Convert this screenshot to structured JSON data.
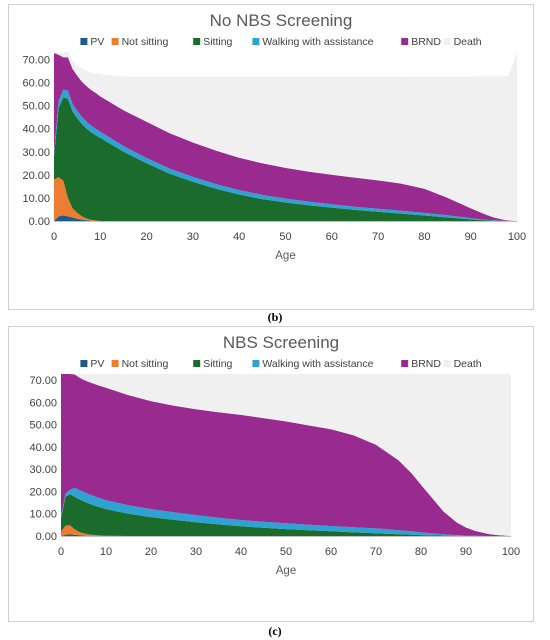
{
  "captions": {
    "b": "(b)",
    "c": "(c)"
  },
  "colors": {
    "PV": "#1f5c8b",
    "Not sitting": "#ed7d31",
    "Sitting": "#1a6b2c",
    "Walking with assistance": "#2ea3d3",
    "BRND": "#982a90",
    "Death": "#f0f0f0"
  },
  "chart_data": [
    {
      "id": "b",
      "type": "area",
      "stacked": true,
      "title": "No NBS Screening",
      "xlabel": "Age",
      "ylabel": "",
      "xlim": [
        0,
        100
      ],
      "ylim": [
        0,
        72.8
      ],
      "xticks": [
        "0",
        "10",
        "20",
        "30",
        "40",
        "50",
        "60",
        "70",
        "80",
        "90",
        "100"
      ],
      "yticks": [
        "0.00",
        "10.00",
        "20.00",
        "30.00",
        "40.00",
        "50.00",
        "60.00",
        "70.00"
      ],
      "legend_position": "top",
      "x": [
        0,
        1,
        2,
        3,
        4,
        5,
        6,
        7,
        8,
        9,
        10,
        15,
        20,
        25,
        30,
        35,
        40,
        45,
        50,
        55,
        60,
        65,
        70,
        75,
        80,
        85,
        90,
        93,
        95,
        97,
        98,
        100
      ],
      "series": [
        {
          "name": "PV",
          "values": [
            0,
            2,
            2.5,
            2,
            1.5,
            1,
            0.6,
            0.3,
            0.1,
            0,
            0,
            0,
            0,
            0,
            0,
            0,
            0,
            0,
            0,
            0,
            0,
            0,
            0,
            0,
            0,
            0,
            0,
            0,
            0,
            0,
            0,
            0
          ]
        },
        {
          "name": "Not sitting",
          "values": [
            18,
            17,
            15,
            8,
            4,
            2.5,
            1.5,
            0.8,
            0.4,
            0.2,
            0,
            0,
            0,
            0,
            0,
            0,
            0,
            0,
            0,
            0,
            0,
            0,
            0,
            0,
            0,
            0,
            0,
            0,
            0,
            0,
            0,
            0
          ]
        },
        {
          "name": "Sitting",
          "values": [
            10,
            30,
            36,
            43,
            42,
            41,
            40,
            39,
            38,
            37,
            36,
            30,
            25,
            20.5,
            17,
            14,
            11.5,
            9.5,
            8,
            6.8,
            5.8,
            4.8,
            4,
            3.2,
            2.4,
            1.5,
            0.7,
            0.3,
            0.1,
            0,
            0,
            0
          ]
        },
        {
          "name": "Walking with assistance",
          "values": [
            2,
            3,
            3.5,
            3.5,
            3.3,
            3.2,
            3.1,
            3.0,
            2.9,
            2.8,
            2.7,
            2.5,
            2.3,
            2.2,
            2.1,
            2.0,
            1.9,
            1.8,
            1.7,
            1.6,
            1.5,
            1.4,
            1.3,
            1.2,
            1.1,
            1.0,
            0.6,
            0.3,
            0.2,
            0.1,
            0,
            0
          ]
        },
        {
          "name": "BRND",
          "values": [
            42.8,
            20,
            14,
            14.5,
            15.2,
            15.3,
            15.2,
            15.4,
            15.4,
            15.5,
            15.3,
            15.5,
            15.7,
            15.3,
            14.9,
            14.5,
            14,
            13.7,
            13.3,
            13,
            12.7,
            12.6,
            12.3,
            11.8,
            10.5,
            7.5,
            4.2,
            2.4,
            1.2,
            0.5,
            0.2,
            0
          ]
        },
        {
          "name": "Death",
          "values": [
            0,
            0.8,
            1.8,
            2.6,
            3.6,
            4.6,
            5.6,
            6.6,
            7.6,
            8.6,
            9.6,
            14.6,
            19.6,
            24.6,
            28.6,
            32.1,
            35.2,
            37.6,
            39.6,
            41.2,
            42.6,
            43.8,
            45.0,
            46.2,
            48.6,
            52.6,
            57.1,
            59.8,
            61.3,
            62.2,
            62.6,
            72.8
          ]
        }
      ]
    },
    {
      "id": "c",
      "type": "area",
      "stacked": true,
      "title": "NBS Screening",
      "xlabel": "Age",
      "ylabel": "",
      "xlim": [
        0,
        100
      ],
      "ylim": [
        0,
        72.8
      ],
      "xticks": [
        "0",
        "10",
        "20",
        "30",
        "40",
        "50",
        "60",
        "70",
        "80",
        "90",
        "100"
      ],
      "yticks": [
        "0.00",
        "10.00",
        "20.00",
        "30.00",
        "40.00",
        "50.00",
        "60.00",
        "70.00"
      ],
      "legend_position": "top",
      "x": [
        0,
        1,
        2,
        3,
        4,
        5,
        6,
        8,
        10,
        15,
        20,
        25,
        30,
        35,
        40,
        45,
        50,
        55,
        60,
        65,
        70,
        75,
        78,
        80,
        85,
        88,
        90,
        92,
        95,
        97,
        100
      ],
      "series": [
        {
          "name": "PV",
          "values": [
            0,
            0.6,
            0.8,
            0.6,
            0.3,
            0.2,
            0.1,
            0,
            0,
            0,
            0,
            0,
            0,
            0,
            0,
            0,
            0,
            0,
            0,
            0,
            0,
            0,
            0,
            0,
            0,
            0,
            0,
            0,
            0,
            0,
            0
          ]
        },
        {
          "name": "Not sitting",
          "values": [
            2,
            4,
            4,
            2.5,
            1.5,
            1,
            0.6,
            0.3,
            0.1,
            0,
            0,
            0,
            0,
            0,
            0,
            0,
            0,
            0,
            0,
            0,
            0,
            0,
            0,
            0,
            0,
            0,
            0,
            0,
            0,
            0,
            0
          ]
        },
        {
          "name": "Sitting",
          "values": [
            6,
            13,
            14,
            14.5,
            14.8,
            14.4,
            14,
            13,
            12,
            10,
            8.5,
            7.3,
            6.2,
            5.2,
            4.4,
            3.7,
            3.1,
            2.6,
            2.1,
            1.6,
            1.2,
            0.8,
            0.6,
            0.4,
            0.2,
            0.1,
            0,
            0,
            0,
            0,
            0
          ]
        },
        {
          "name": "Walking with assistance",
          "values": [
            1,
            1.5,
            2,
            4,
            4.2,
            4.2,
            4.2,
            4.1,
            4.0,
            3.8,
            3.6,
            3.4,
            3.2,
            3.0,
            2.8,
            2.7,
            2.6,
            2.5,
            2.4,
            2.3,
            2.2,
            1.8,
            1.5,
            1.2,
            0.6,
            0.3,
            0.2,
            0.1,
            0,
            0,
            0
          ]
        },
        {
          "name": "BRND",
          "values": [
            63.8,
            53.7,
            52,
            51,
            50.5,
            50.4,
            50.5,
            50.5,
            50.5,
            49.5,
            48.5,
            47.9,
            47.6,
            47.4,
            47.2,
            46.6,
            45.8,
            44.6,
            43.5,
            41.4,
            37.6,
            31.4,
            25.9,
            21.4,
            10.2,
            5.6,
            3.6,
            2.2,
            0.9,
            0.4,
            0
          ]
        },
        {
          "name": "Death",
          "values": [
            0,
            0,
            0,
            0.2,
            1.5,
            2.6,
            3.4,
            4.9,
            6.2,
            9.5,
            12.2,
            14.2,
            15.8,
            17.2,
            18.4,
            19.8,
            21.3,
            23.1,
            24.8,
            27.5,
            31.8,
            38.8,
            44.8,
            49.8,
            61.8,
            66.8,
            69.0,
            70.5,
            71.9,
            72.4,
            72.8
          ]
        }
      ]
    }
  ]
}
